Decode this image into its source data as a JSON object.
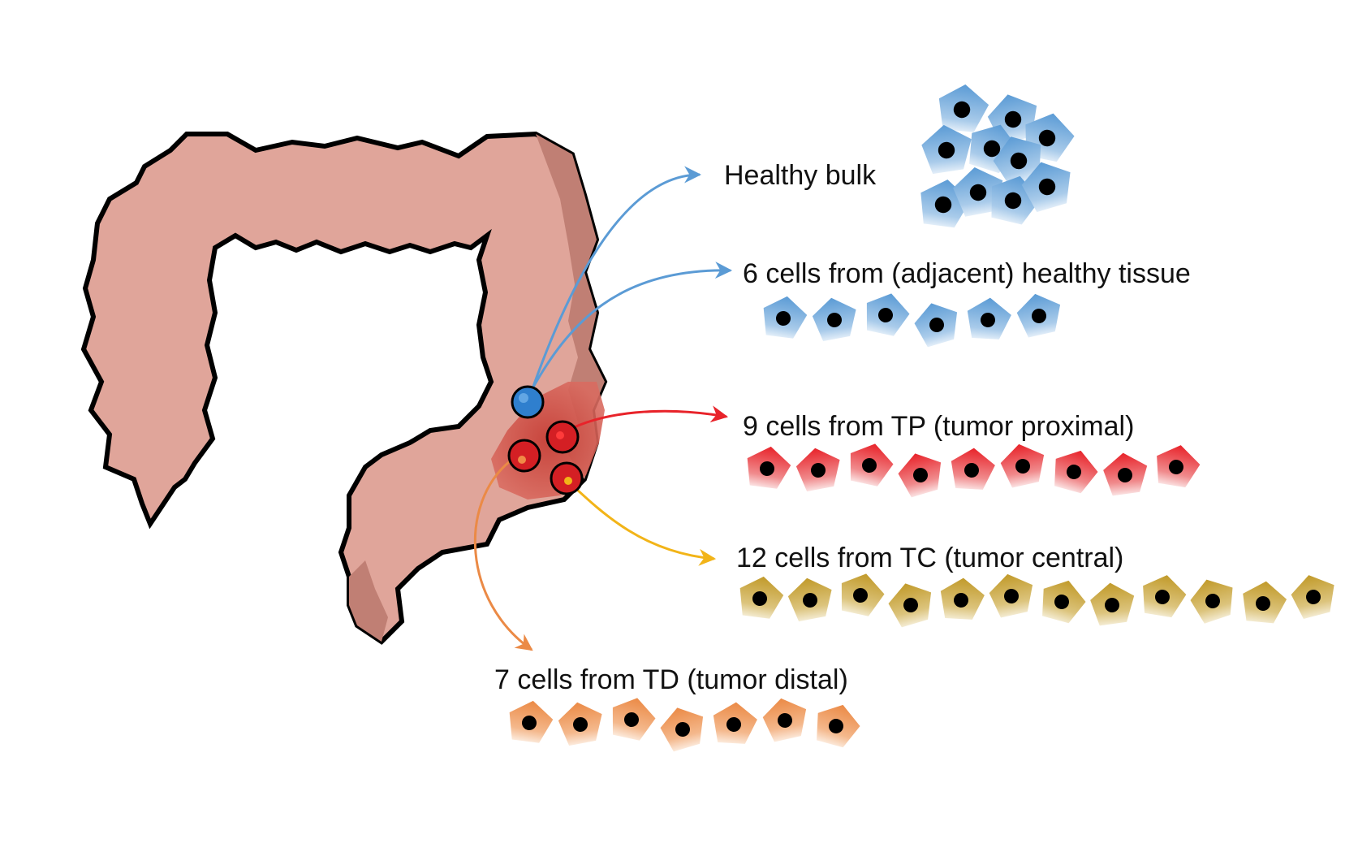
{
  "diagram": {
    "colors": {
      "colon_fill": "#e0a59a",
      "colon_shadow": "#c07f74",
      "colon_outline": "#000000",
      "tumor_area": "#d45a50",
      "healthy": "#5b9bd5",
      "proximal": "#e8232a",
      "central": "#c19a2a",
      "distal": "#eb8a46",
      "central_arrow": "#f2b418",
      "nucleus": "#000000"
    },
    "labels": {
      "healthy_bulk": "Healthy bulk",
      "adjacent": "6 cells from (adjacent) healthy tissue",
      "proximal": "9 cells from TP (tumor proximal)",
      "central": "12 cells from TC (tumor central)",
      "distal": "7 cells from TD (tumor distal)"
    },
    "groups": [
      {
        "key": "adjacent",
        "count": 6,
        "color": "#5b9bd5"
      },
      {
        "key": "proximal",
        "count": 9,
        "color": "#e8232a"
      },
      {
        "key": "central",
        "count": 12,
        "color": "#c19a2a"
      },
      {
        "key": "distal",
        "count": 7,
        "color": "#eb8a46"
      }
    ],
    "icons": {
      "organ": "colon-icon",
      "sample_point": "sampling-site-icon",
      "cell": "cell-icon"
    }
  }
}
